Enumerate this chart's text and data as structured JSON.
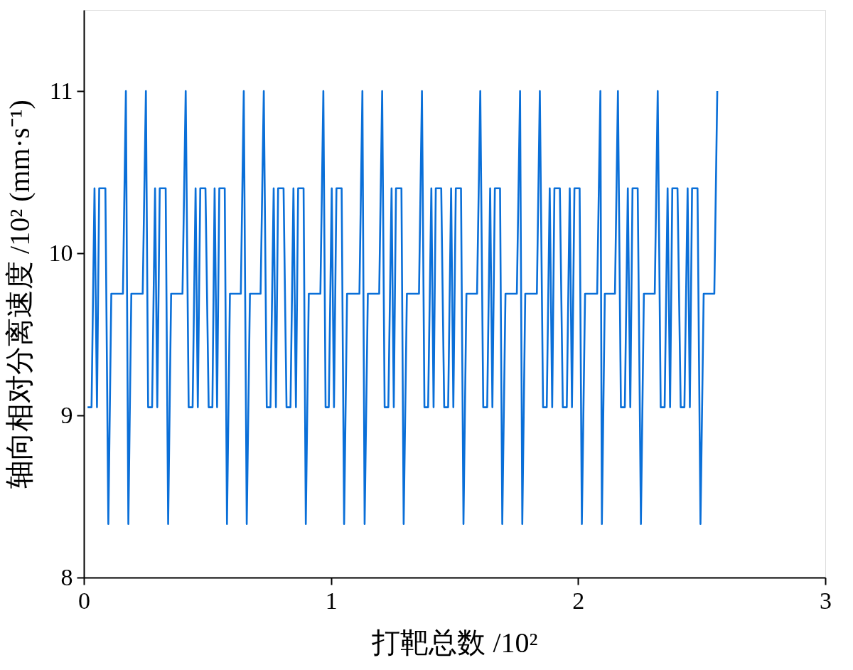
{
  "chart_data": {
    "type": "line",
    "xlabel": "打靶总数 /10²",
    "ylabel": "轴向相对分离速度 /10² (mm·s⁻¹)",
    "xlim": [
      0,
      3
    ],
    "xticks": [
      0,
      1,
      2,
      3
    ],
    "ylim": [
      8,
      11.5
    ],
    "yticks": [
      8,
      9,
      10,
      11
    ],
    "grid": false,
    "series": [
      {
        "color": "#0a6fd8",
        "x": [
          0.015,
          0.031,
          0.043,
          0.053,
          0.062,
          0.087,
          0.099,
          0.111,
          0.158,
          0.17,
          0.18,
          0.192,
          0.238,
          0.251,
          0.26,
          0.276,
          0.288,
          0.297,
          0.307,
          0.331,
          0.341,
          0.353,
          0.399,
          0.412,
          0.424,
          0.44,
          0.452,
          0.461,
          0.471,
          0.492,
          0.505,
          0.52,
          0.529,
          0.539,
          0.548,
          0.57,
          0.579,
          0.591,
          0.635,
          0.647,
          0.659,
          0.672,
          0.715,
          0.728,
          0.74,
          0.755,
          0.768,
          0.777,
          0.786,
          0.808,
          0.82,
          0.836,
          0.848,
          0.858,
          0.867,
          0.889,
          0.898,
          0.91,
          0.957,
          0.969,
          0.978,
          0.991,
          1.003,
          1.012,
          1.022,
          1.043,
          1.053,
          1.065,
          1.115,
          1.127,
          1.136,
          1.149,
          1.195,
          1.207,
          1.217,
          1.232,
          1.245,
          1.254,
          1.263,
          1.285,
          1.294,
          1.307,
          1.356,
          1.368,
          1.378,
          1.393,
          1.406,
          1.415,
          1.424,
          1.446,
          1.458,
          1.474,
          1.486,
          1.495,
          1.505,
          1.526,
          1.536,
          1.548,
          1.591,
          1.604,
          1.616,
          1.632,
          1.644,
          1.653,
          1.663,
          1.684,
          1.693,
          1.706,
          1.752,
          1.765,
          1.774,
          1.786,
          1.833,
          1.845,
          1.858,
          1.873,
          1.885,
          1.895,
          1.904,
          1.926,
          1.938,
          1.954,
          1.966,
          1.975,
          1.985,
          2.006,
          2.015,
          2.028,
          2.077,
          2.09,
          2.096,
          2.108,
          2.149,
          2.161,
          2.173,
          2.189,
          2.201,
          2.211,
          2.22,
          2.241,
          2.254,
          2.266,
          2.31,
          2.322,
          2.334,
          2.35,
          2.362,
          2.372,
          2.381,
          2.402,
          2.415,
          2.43,
          2.443,
          2.452,
          2.461,
          2.483,
          2.495,
          2.508,
          2.551,
          2.563
        ],
        "values": [
          9.05,
          9.05,
          10.4,
          9.05,
          10.4,
          10.4,
          8.33,
          9.75,
          9.75,
          11,
          8.33,
          9.75,
          9.75,
          11,
          9.05,
          9.05,
          10.4,
          9.05,
          10.4,
          10.4,
          8.33,
          9.75,
          9.75,
          11,
          9.05,
          9.05,
          10.4,
          9.05,
          10.4,
          10.4,
          9.05,
          9.05,
          10.4,
          9.05,
          10.4,
          10.4,
          8.33,
          9.75,
          9.75,
          11,
          8.33,
          9.75,
          9.75,
          11,
          9.05,
          9.05,
          10.4,
          9.05,
          10.4,
          10.4,
          9.05,
          9.05,
          10.4,
          9.05,
          10.4,
          10.4,
          8.33,
          9.75,
          9.75,
          11,
          9.05,
          9.05,
          10.4,
          9.05,
          10.4,
          10.4,
          8.33,
          9.75,
          9.75,
          11,
          8.33,
          9.75,
          9.75,
          11,
          9.05,
          9.05,
          10.4,
          9.05,
          10.4,
          10.4,
          8.33,
          9.75,
          9.75,
          11,
          9.05,
          9.05,
          10.4,
          9.05,
          10.4,
          10.4,
          9.05,
          9.05,
          10.4,
          9.05,
          10.4,
          10.4,
          8.33,
          9.75,
          9.75,
          11,
          9.05,
          9.05,
          10.4,
          9.05,
          10.4,
          10.4,
          8.33,
          9.75,
          9.75,
          11,
          8.33,
          9.75,
          9.75,
          11,
          9.05,
          9.05,
          10.4,
          9.05,
          10.4,
          10.4,
          9.05,
          9.05,
          10.4,
          9.05,
          10.4,
          10.4,
          8.33,
          9.75,
          9.75,
          11,
          8.33,
          9.75,
          9.75,
          11,
          9.05,
          9.05,
          10.4,
          9.05,
          10.4,
          10.4,
          8.33,
          9.75,
          9.75,
          11,
          9.05,
          9.05,
          10.4,
          9.05,
          10.4,
          10.4,
          9.05,
          9.05,
          10.4,
          9.05,
          10.4,
          10.4,
          8.33,
          9.75,
          9.75,
          11
        ]
      }
    ]
  }
}
